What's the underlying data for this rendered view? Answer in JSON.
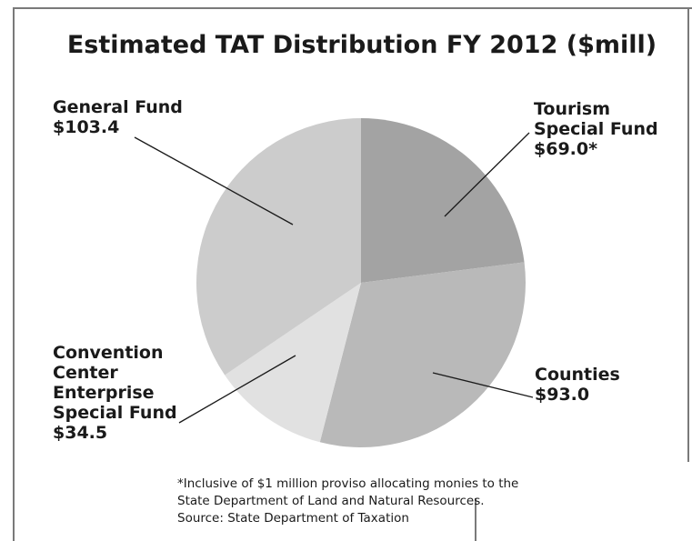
{
  "chart_data": {
    "type": "pie",
    "title": "Estimated TAT Distribution FY 2012 ($mill)",
    "categories": [
      "Tourism Special Fund",
      "Counties",
      "Convention Center Enterprise Special Fund",
      "General Fund"
    ],
    "values": [
      69.0,
      93.0,
      34.5,
      103.4
    ],
    "value_labels": [
      "$69.0*",
      "$93.0",
      "$34.5",
      "$103.4"
    ],
    "label_lines": [
      [
        "Tourism",
        "Special Fund"
      ],
      [
        "Counties"
      ],
      [
        "Convention",
        "Center",
        "Enterprise",
        "Special Fund"
      ],
      [
        "General Fund"
      ]
    ],
    "colors": [
      "#a3a3a3",
      "#b9b9b9",
      "#e1e1e1",
      "#cccccc"
    ],
    "start_angle_deg": 0,
    "direction": "clockwise"
  },
  "notes": [
    "*Inclusive of $1 million proviso allocating monies to the",
    "State Department of Land and Natural Resources.",
    "Source:  State Department of Taxation"
  ]
}
